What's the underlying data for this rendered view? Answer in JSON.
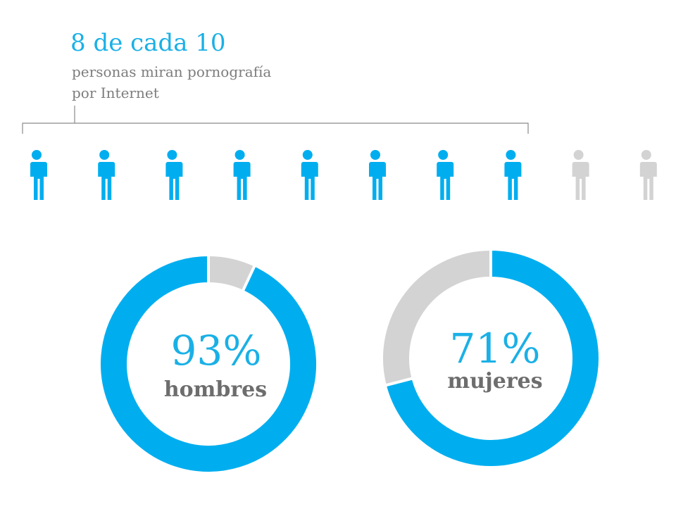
{
  "header": {
    "headline": "8 de cada 10",
    "subline_1": "personas miran pornografía",
    "subline_2": "por Internet"
  },
  "colors": {
    "accent": "#00aeef",
    "muted": "#d3d3d3",
    "label_gray": "#6d6d6d"
  },
  "chart_data": [
    {
      "type": "pictograph",
      "total": 10,
      "highlighted": 8,
      "icon": "person-icon"
    },
    {
      "type": "pie",
      "style": "donut",
      "value_label": "93%",
      "category_label": "hombres",
      "slices": [
        {
          "value": 93,
          "color": "#00aeef"
        },
        {
          "value": 7,
          "color": "#d3d3d3"
        }
      ]
    },
    {
      "type": "pie",
      "style": "donut",
      "value_label": "71%",
      "category_label": "mujeres",
      "slices": [
        {
          "value": 71,
          "color": "#00aeef"
        },
        {
          "value": 29,
          "color": "#d3d3d3"
        }
      ]
    }
  ]
}
